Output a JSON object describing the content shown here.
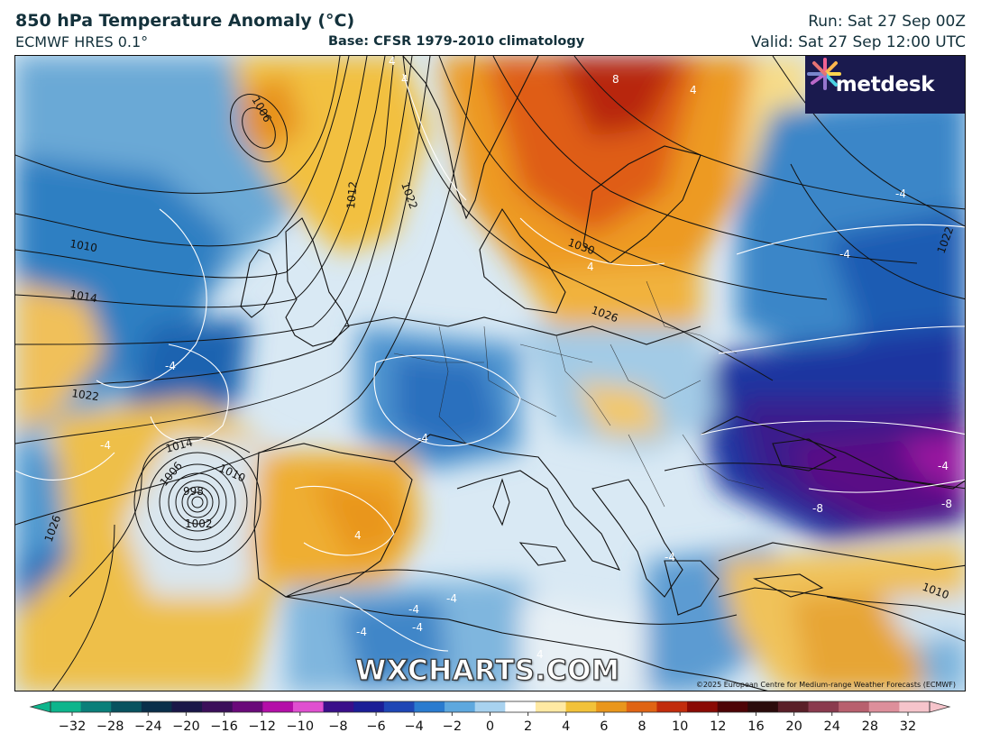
{
  "header": {
    "title": "850 hPa Temperature Anomaly (°C)",
    "model": "ECMWF HRES 0.1°",
    "base": "Base: CFSR 1979-2010 climatology",
    "run": "Run: Sat 27 Sep 00Z",
    "valid": "Valid: Sat 27 Sep 12:00 UTC"
  },
  "branding": {
    "logo_text": "metdesk",
    "watermark": "WXCHARTS.COM",
    "copyright": "©2025 European Centre for Medium-range Weather Forecasts (ECMWF)"
  },
  "map": {
    "isobar_labels": [
      "1006",
      "1012",
      "1022",
      "1010",
      "1014",
      "1030",
      "1026",
      "1022",
      "1014",
      "1010",
      "1006",
      "998",
      "1002",
      "1026",
      "1010",
      "1022"
    ],
    "anomaly_labels": [
      "4",
      "4",
      "8",
      "4",
      "4",
      "-4",
      "-4",
      "-4",
      "-4",
      "-4",
      "-4",
      "-8",
      "-8",
      "-4",
      "4",
      "-4",
      "-4",
      "-4",
      "-4",
      "4"
    ]
  },
  "colorbar": {
    "ticks": [
      "-32",
      "-28",
      "-24",
      "-20",
      "-16",
      "-12",
      "-10",
      "-8",
      "-6",
      "-4",
      "-2",
      "0",
      "2",
      "4",
      "6",
      "8",
      "10",
      "12",
      "16",
      "20",
      "24",
      "28",
      "32"
    ],
    "colors": [
      "#0db58c",
      "#0a7f7a",
      "#08525f",
      "#0a2f4a",
      "#1a1748",
      "#3b0f5a",
      "#6a0a7a",
      "#b40fa8",
      "#e04fd0",
      "#3a0f8a",
      "#1b1e96",
      "#1e46b5",
      "#2a7bcf",
      "#5ea8de",
      "#a8d2ef",
      "#ffffff",
      "#ffe9a3",
      "#f2c23a",
      "#e9961c",
      "#e06414",
      "#c22c0c",
      "#8a0a04",
      "#4e0406",
      "#2b0b0b",
      "#5a1f28",
      "#8a3a4e",
      "#b8606e",
      "#dd8f9b",
      "#f6c4cb"
    ]
  }
}
